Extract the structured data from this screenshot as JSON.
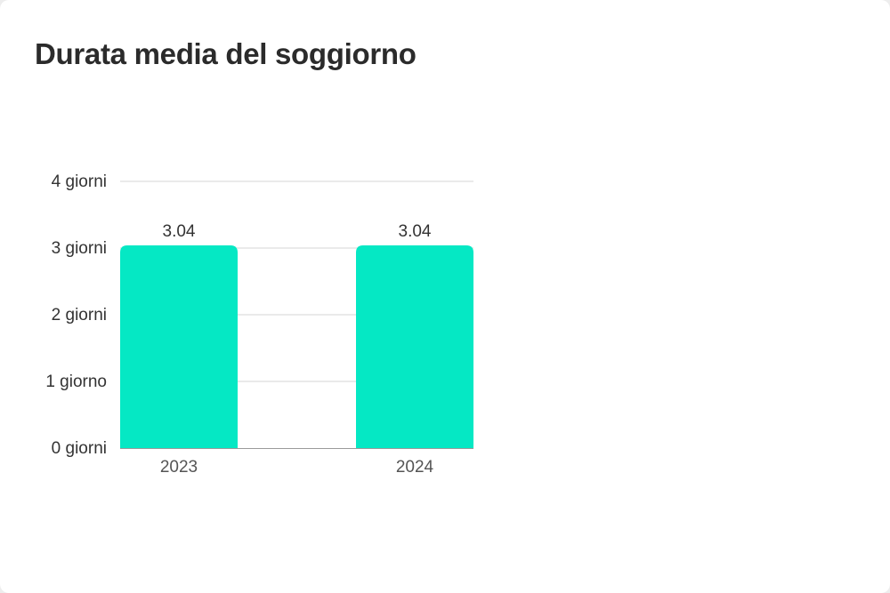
{
  "title": "Durata media del soggiorno",
  "chart_data": {
    "type": "bar",
    "title": "Durata media del soggiorno",
    "categories": [
      "2023",
      "2024"
    ],
    "values": [
      3.04,
      3.04
    ],
    "value_labels": [
      "3.04",
      "3.04"
    ],
    "ylim": [
      0,
      4
    ],
    "yticks": [
      0,
      1,
      2,
      3,
      4
    ],
    "ytick_labels": [
      "0 giorni",
      "1 giorno",
      "2 giorni",
      "3 giorni",
      "4 giorni"
    ],
    "xlabel": "",
    "ylabel": "",
    "grid": true,
    "legend": "none",
    "colors": {
      "bar": "#05e8c4",
      "grid": "#d6d6d6",
      "baseline": "#9a9a9a",
      "text": "#333333",
      "tick_text": "#555555"
    }
  }
}
